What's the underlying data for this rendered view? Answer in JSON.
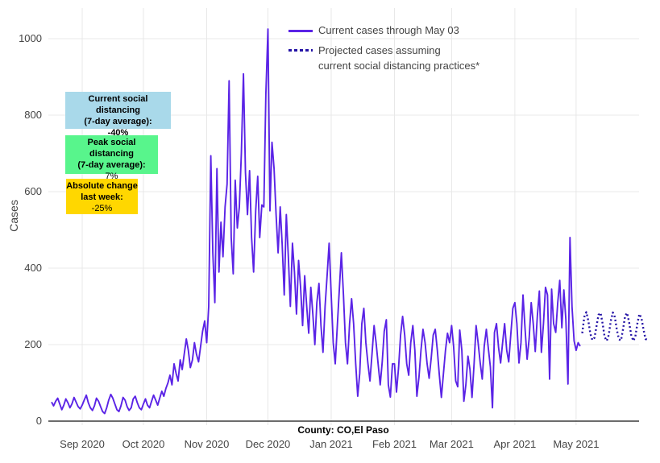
{
  "chart_data": {
    "type": "line",
    "title": "",
    "xlabel": "County: CO,El Paso",
    "ylabel": "Cases",
    "x_unit": "daily values, day 0 = 2020-08-17",
    "ylim": [
      0,
      1060
    ],
    "grid": true,
    "legend_position": "top-center",
    "y_ticks": [
      0,
      200,
      400,
      600,
      800,
      1000
    ],
    "x_ticks": [
      {
        "label": "Sep 2020",
        "day": 15
      },
      {
        "label": "Oct 2020",
        "day": 45
      },
      {
        "label": "Nov 2020",
        "day": 76
      },
      {
        "label": "Dec 2020",
        "day": 106
      },
      {
        "label": "Jan 2021",
        "day": 137
      },
      {
        "label": "Feb 2021",
        "day": 168
      },
      {
        "label": "Mar 2021",
        "day": 196
      },
      {
        "label": "Apr 2021",
        "day": 227
      },
      {
        "label": "May 2021",
        "day": 257
      }
    ],
    "series": [
      {
        "name": "Current cases through May 03",
        "line_style": "solid",
        "color": "#5a23e6",
        "start_day": 0,
        "values": [
          50,
          40,
          52,
          60,
          45,
          30,
          42,
          58,
          48,
          35,
          45,
          62,
          50,
          38,
          32,
          42,
          55,
          68,
          48,
          35,
          28,
          40,
          60,
          52,
          38,
          25,
          20,
          35,
          55,
          70,
          60,
          45,
          30,
          25,
          40,
          62,
          55,
          38,
          28,
          35,
          58,
          65,
          48,
          35,
          30,
          45,
          58,
          42,
          35,
          52,
          68,
          55,
          42,
          60,
          78,
          65,
          85,
          100,
          120,
          95,
          150,
          125,
          105,
          160,
          135,
          175,
          215,
          185,
          140,
          160,
          205,
          175,
          155,
          195,
          235,
          262,
          205,
          300,
          694,
          440,
          310,
          660,
          390,
          520,
          430,
          560,
          620,
          890,
          480,
          385,
          630,
          505,
          560,
          700,
          908,
          650,
          540,
          655,
          480,
          390,
          550,
          640,
          480,
          565,
          560,
          855,
          1025,
          550,
          729,
          660,
          540,
          440,
          560,
          460,
          330,
          540,
          430,
          300,
          465,
          390,
          280,
          420,
          350,
          250,
          380,
          300,
          230,
          350,
          280,
          200,
          310,
          360,
          250,
          180,
          300,
          380,
          465,
          330,
          205,
          150,
          250,
          345,
          440,
          330,
          205,
          150,
          255,
          320,
          255,
          150,
          65,
          125,
          255,
          295,
          205,
          150,
          105,
          175,
          250,
          205,
          150,
          95,
          155,
          235,
          265,
          95,
          63,
          150,
          150,
          76,
          140,
          225,
          274,
          225,
          150,
          120,
          205,
          250,
          185,
          65,
          115,
          185,
          240,
          205,
          150,
          112,
          165,
          225,
          240,
          185,
          120,
          62,
          125,
          185,
          230,
          205,
          250,
          195,
          105,
          90,
          238,
          185,
          52,
          95,
          170,
          135,
          62,
          150,
          250,
          205,
          152,
          110,
          196,
          240,
          190,
          142,
          35,
          232,
          255,
          192,
          152,
          205,
          255,
          185,
          155,
          225,
          295,
          310,
          255,
          152,
          205,
          330,
          240,
          162,
          215,
          310,
          255,
          182,
          275,
          340,
          180,
          255,
          350,
          330,
          110,
          345,
          255,
          232,
          310,
          368,
          244,
          343,
          265,
          97,
          480,
          300,
          210,
          185,
          205,
          196
        ]
      },
      {
        "name": "Projected cases assuming current social distancing practices*",
        "line_style": "dotted",
        "color": "#2413a6",
        "start_day": 260,
        "values": [
          230,
          272,
          285,
          262,
          228,
          212,
          218,
          248,
          278,
          283,
          255,
          220,
          210,
          225,
          262,
          284,
          272,
          238,
          214,
          211,
          240,
          275,
          283,
          258,
          225,
          210,
          220,
          255,
          280,
          270,
          240,
          215,
          212
        ]
      }
    ]
  },
  "legend": {
    "items": [
      {
        "label": "Current cases through May 03"
      },
      {
        "label_lines": [
          "Projected cases assuming",
          "current social distancing practices*"
        ]
      }
    ]
  },
  "y_axis": {
    "title": "Cases"
  },
  "x_axis": {
    "title": "County: CO,El Paso"
  },
  "annotations": [
    {
      "bg": "#a9d9ea",
      "line1": "Current social distancing",
      "line2": "(7-day average):",
      "value": "-40%",
      "value_bold": true
    },
    {
      "bg": "#58f58c",
      "line1": "Peak social distancing",
      "line2": "(7-day average):",
      "value": "7%",
      "value_bold": false
    },
    {
      "bg": "#ffd700",
      "line1": "Absolute change",
      "line2": "last week:",
      "value": "-25%",
      "value_bold": false
    }
  ],
  "colors": {
    "grid": "#e8e8e8",
    "axis_line": "#3b3b3b",
    "tick_text": "#444444",
    "solid_line": "#5a23e6",
    "dotted_line": "#2413a6"
  }
}
